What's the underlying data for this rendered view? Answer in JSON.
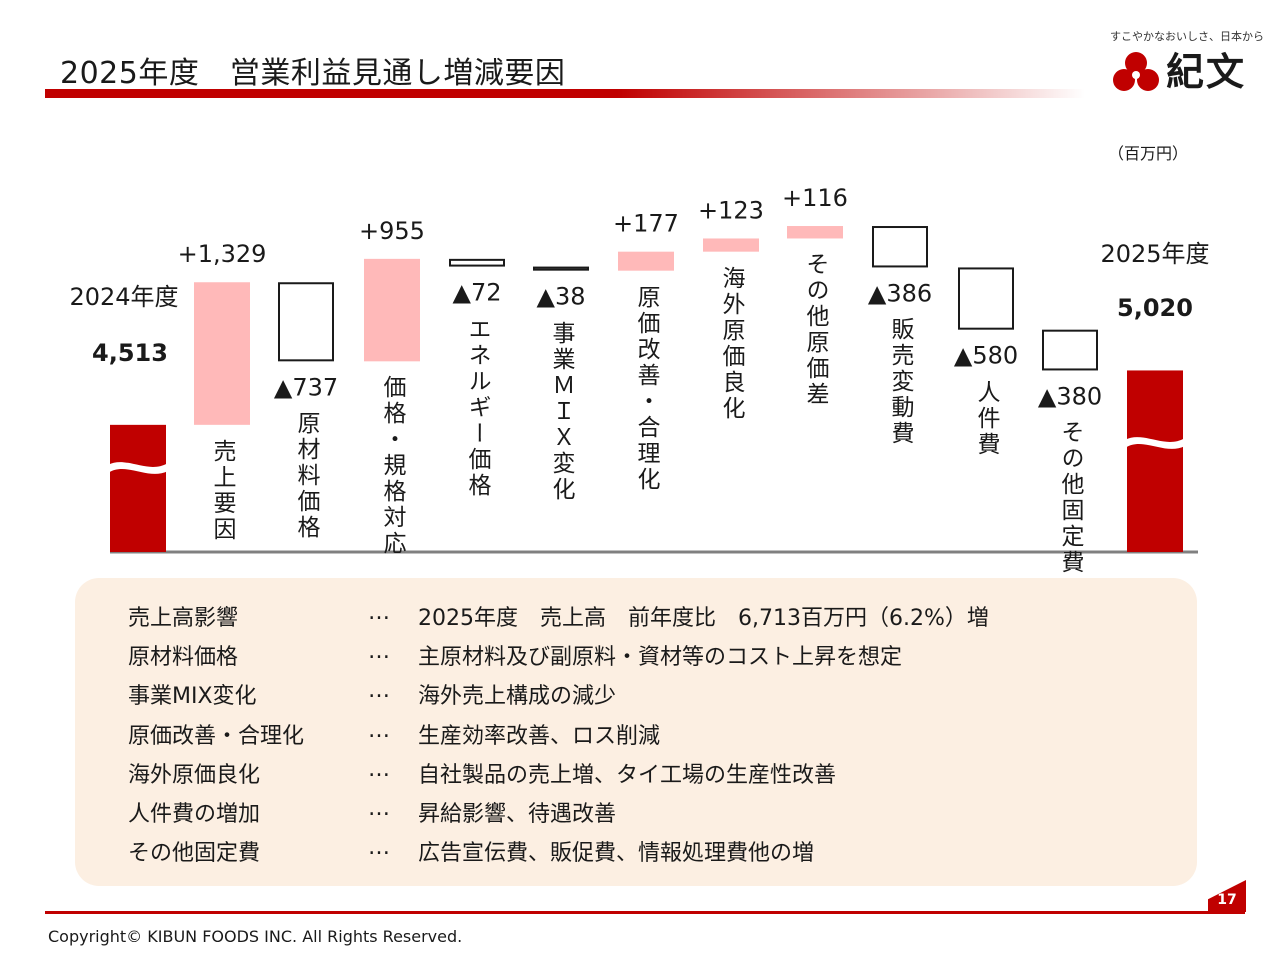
{
  "header": {
    "title": "2025年度　営業利益見通し増減要因",
    "logo_tagline": "すこやかなおいしさ、日本から",
    "logo_text": "紀文"
  },
  "unit": "（百万円）",
  "chart_data": {
    "type": "waterfall",
    "start": {
      "label": "2024年度",
      "value": 4513,
      "display": "4,513"
    },
    "steps": [
      {
        "category": "売上要因",
        "value": 1329,
        "display": "+1,329"
      },
      {
        "category": "原材料価格",
        "value": -737,
        "display": "▲737"
      },
      {
        "category": "価格・規格対応",
        "value": 955,
        "display": "+955"
      },
      {
        "category": "エネルギー価格",
        "value": -72,
        "display": "▲72"
      },
      {
        "category": "事業ＭＩＸ変化",
        "value": -38,
        "display": "▲38"
      },
      {
        "category": "原価改善・合理化",
        "value": 177,
        "display": "+177"
      },
      {
        "category": "海外原価良化",
        "value": 123,
        "display": "+123"
      },
      {
        "category": "その他原価差",
        "value": 116,
        "display": "+116"
      },
      {
        "category": "販売変動費",
        "value": -386,
        "display": "▲386"
      },
      {
        "category": "人件費",
        "value": -580,
        "display": "▲580"
      },
      {
        "category": "その他固定費",
        "value": -380,
        "display": "▲380"
      }
    ],
    "end": {
      "label": "2025年度",
      "value": 5020,
      "display": "5,020"
    },
    "colors": {
      "total": "#c00000",
      "increase": "#ffb9b9",
      "decrease": "#ffffff",
      "decrease_border": "#1a1a1a"
    }
  },
  "factors": [
    {
      "label": "売上高影響",
      "dots": "…",
      "text": "2025年度　売上高　前年度比　6,713百万円（6.2%）増"
    },
    {
      "label": "原材料価格",
      "dots": "…",
      "text": "主原材料及び副原料・資材等のコスト上昇を想定"
    },
    {
      "label": "事業MIX変化",
      "dots": "…",
      "text": "海外売上構成の減少"
    },
    {
      "label": "原価改善・合理化",
      "dots": "…",
      "text": "生産効率改善、ロス削減"
    },
    {
      "label": "海外原価良化",
      "dots": "…",
      "text": "自社製品の売上増、タイ工場の生産性改善"
    },
    {
      "label": "人件費の増加",
      "dots": "…",
      "text": "昇給影響、待遇改善"
    },
    {
      "label": "その他固定費",
      "dots": "…",
      "text": "広告宣伝費、販促費、情報処理費他の増"
    }
  ],
  "footer": {
    "page_number": "17",
    "copyright": "Copyright©  KIBUN FOODS INC. All Rights Reserved."
  }
}
